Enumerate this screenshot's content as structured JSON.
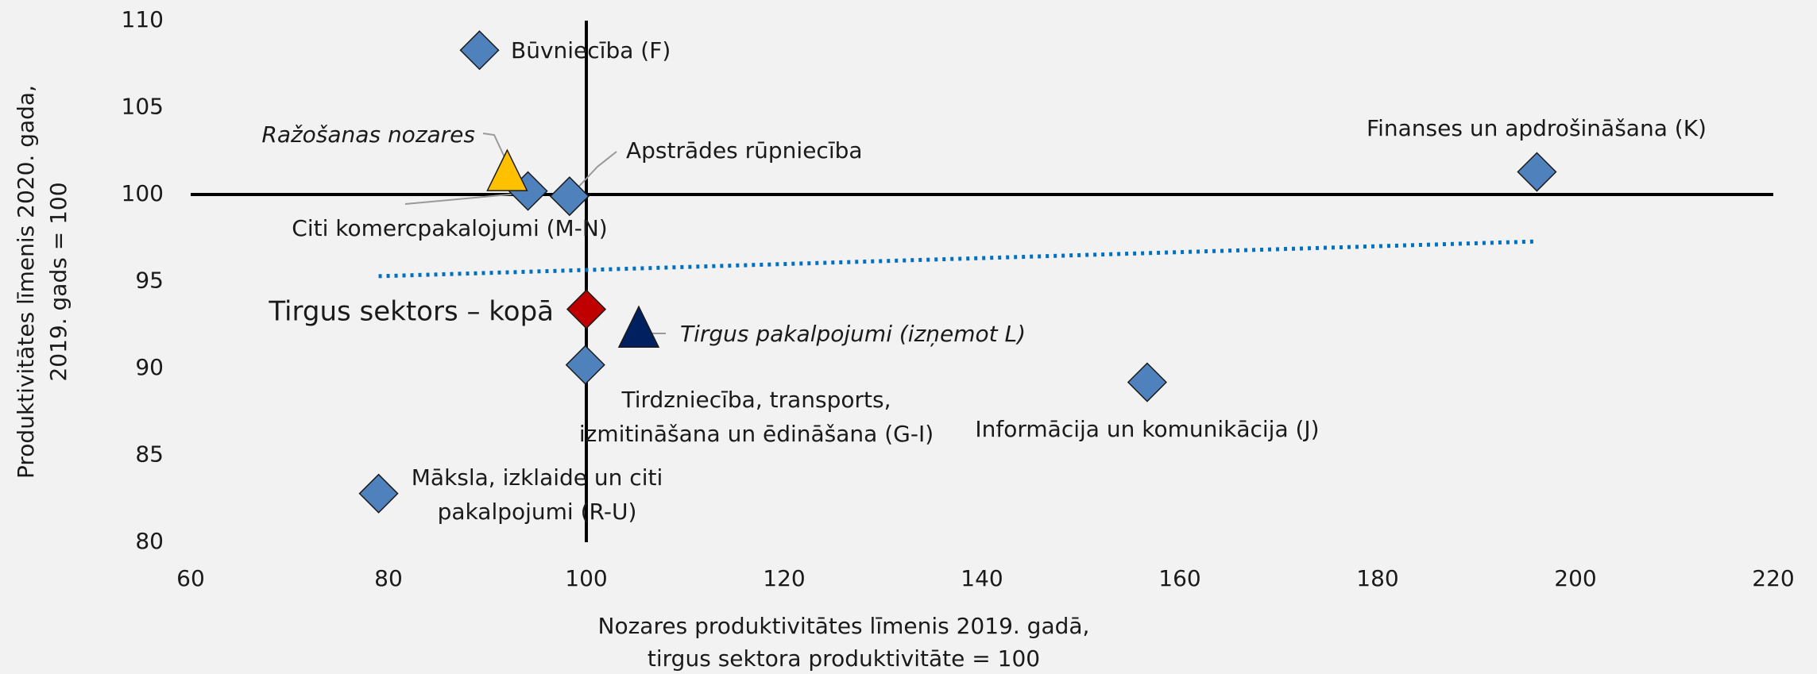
{
  "chart_data": {
    "type": "scatter",
    "x_label": [
      "Nozares produktivitātes līmenis 2019. gadā,",
      "tirgus sektora produktivitāte = 100"
    ],
    "y_label": [
      "Produktivitātes līmenis  2020. gada,",
      "2019. gads = 100"
    ],
    "xlim": [
      60,
      220
    ],
    "xticks": [
      60,
      80,
      100,
      120,
      140,
      160,
      180,
      200,
      220
    ],
    "ylim": [
      80,
      110
    ],
    "yticks": [
      80,
      85,
      90,
      95,
      100,
      105,
      110
    ],
    "ref_x": 100,
    "ref_y": 100,
    "trendline": {
      "color": "#0070c0",
      "x": [
        79,
        196
      ],
      "y": [
        95.3,
        97.3
      ]
    },
    "points": [
      {
        "label": "Būvniecība (F)",
        "x": 89.2,
        "y": 108.3,
        "marker": "diamond",
        "color": "#4f81bd"
      },
      {
        "label": "Finanses un apdrošināšana (K)",
        "x": 196.1,
        "y": 101.3,
        "marker": "diamond",
        "color": "#4f81bd"
      },
      {
        "label": "Citi komercpakalojumi (M-N)",
        "x": 94.1,
        "y": 100.2,
        "marker": "diamond",
        "color": "#4f81bd"
      },
      {
        "label": "Apstrādes rūpniecība",
        "x": 98.3,
        "y": 99.9,
        "marker": "diamond",
        "color": "#4f81bd"
      },
      {
        "label": "Tirgus sektors – kopā",
        "x": 100,
        "y": 93.4,
        "marker": "diamond",
        "color": "#c00000"
      },
      {
        "label": [
          "Tirdzniecība, transports,",
          "izmitināšana un ēdināšana (G-I)"
        ],
        "x": 99.9,
        "y": 90.2,
        "marker": "diamond",
        "color": "#4f81bd"
      },
      {
        "label": "Informācija un komunikācija (J)",
        "x": 156.7,
        "y": 89.2,
        "marker": "diamond",
        "color": "#4f81bd"
      },
      {
        "label": [
          "Māksla, izklaide un citi",
          "pakalpojumi (R-U)"
        ],
        "x": 79.0,
        "y": 82.8,
        "marker": "diamond",
        "color": "#4f81bd"
      },
      {
        "label": "Ražošanas nozares",
        "x": 92.0,
        "y": 101.0,
        "marker": "triangle",
        "color": "#ffc000"
      },
      {
        "label": "Tirgus pakalpojumi (izņemot L)",
        "x": 105.3,
        "y": 92.0,
        "marker": "triangle",
        "color": "#002060"
      }
    ]
  }
}
